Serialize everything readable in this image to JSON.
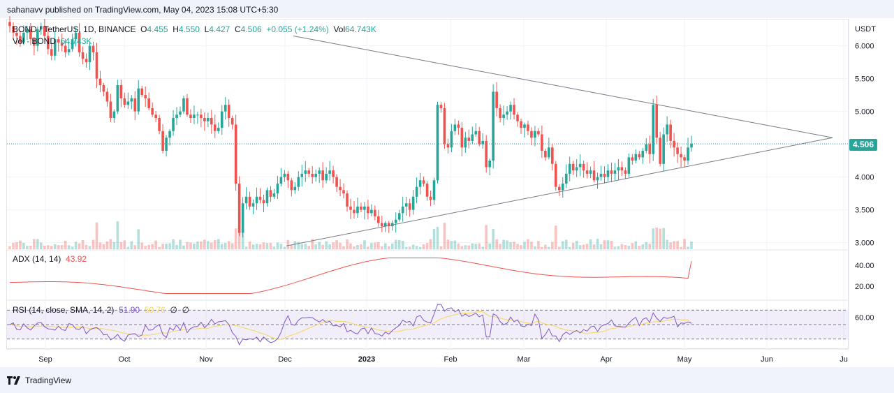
{
  "header": {
    "published": "sahanavv published on TradingView.com, May 04, 2023 15:08 UTC+5:30"
  },
  "legend": {
    "symbol": "BOND / TetherUS, 1D, BINANCE",
    "o_label": "O",
    "o_value": "4.455",
    "h_label": "H",
    "h_value": "4.550",
    "l_label": "L",
    "l_value": "4.427",
    "c_label": "C",
    "c_value": "4.506",
    "change": "+0.055 (+1.24%)",
    "vol_label": "Vol",
    "vol_value": "64.743K",
    "vol_line_label": "Vol · BOND",
    "vol_line_value": "64.743K",
    "adx_label": "ADX (14, 14)",
    "adx_value": "43.92",
    "rsi_label": "RSI (14, close, SMA, 14, 2)",
    "rsi_value": "51.90",
    "rsi_sma_value": "50.76",
    "rsi_extra1": "∅",
    "rsi_extra2": "∅"
  },
  "footer": {
    "logo_text": "TradingView"
  },
  "colors": {
    "up": "#26a69a",
    "down": "#ef5350",
    "adx": "#ef5350",
    "rsi": "#7e57c2",
    "rsi_sma": "#f5d65c",
    "trendline": "#787b86"
  },
  "chart_data": {
    "type": "candlestick",
    "symbol": "BOND / TetherUS",
    "interval": "1D",
    "currency": "USDT",
    "x_axis_labels": [
      "Sep",
      "Oct",
      "Nov",
      "Dec",
      "2023",
      "Feb",
      "Mar",
      "Apr",
      "May",
      "Jun",
      "Ju"
    ],
    "y_axis": {
      "ticks": [
        "6.000",
        "5.500",
        "5.000",
        "4.500",
        "4.000",
        "3.500",
        "3.000"
      ],
      "range": [
        2.9,
        6.4
      ]
    },
    "last_price": "4.506",
    "close_series": [
      6.3,
      6.2,
      6.15,
      6.05,
      6.2,
      6.25,
      6.1,
      6.0,
      6.25,
      6.3,
      6.15,
      5.95,
      5.85,
      6.1,
      6.05,
      6.0,
      5.9,
      5.95,
      6.1,
      6.2,
      5.9,
      5.8,
      5.75,
      6.0,
      5.9,
      5.5,
      5.4,
      5.3,
      5.15,
      4.9,
      5.0,
      5.4,
      5.2,
      5.1,
      5.15,
      5.2,
      5.0,
      5.35,
      5.25,
      5.2,
      5.05,
      4.95,
      4.9,
      4.7,
      4.4,
      4.6,
      4.7,
      4.9,
      4.95,
      5.0,
      5.2,
      4.95,
      4.9,
      4.95,
      4.95,
      4.9,
      4.85,
      4.9,
      4.8,
      4.7,
      4.75,
      5.0,
      5.1,
      4.9,
      4.8,
      3.9,
      3.15,
      3.6,
      3.7,
      3.55,
      3.6,
      3.7,
      3.65,
      3.6,
      3.8,
      3.7,
      3.75,
      3.9,
      4.0,
      4.05,
      3.95,
      3.8,
      3.85,
      4.0,
      4.05,
      4.1,
      4.05,
      4.0,
      4.05,
      4.1,
      3.95,
      4.05,
      4.1,
      4.0,
      3.85,
      3.8,
      3.75,
      3.55,
      3.5,
      3.45,
      3.55,
      3.5,
      3.55,
      3.45,
      3.5,
      3.4,
      3.3,
      3.25,
      3.3,
      3.25,
      3.3,
      3.35,
      3.45,
      3.55,
      3.6,
      3.5,
      3.7,
      3.85,
      3.95,
      3.9,
      3.7,
      3.65,
      3.95,
      5.1,
      5.05,
      4.5,
      4.45,
      4.7,
      4.8,
      4.75,
      4.45,
      4.6,
      4.55,
      4.65,
      4.7,
      4.5,
      4.55,
      4.15,
      4.25,
      5.3,
      5.05,
      4.9,
      4.95,
      5.0,
      5.1,
      4.95,
      4.85,
      4.75,
      4.8,
      4.7,
      4.6,
      4.7,
      4.65,
      4.4,
      4.3,
      4.45,
      4.2,
      3.85,
      3.8,
      3.9,
      4.05,
      4.2,
      4.1,
      4.15,
      4.2,
      4.1,
      4.05,
      4.1,
      3.95,
      4.0,
      4.05,
      4.0,
      4.1,
      4.05,
      4.1,
      4.15,
      4.1,
      4.05,
      4.3,
      4.25,
      4.35,
      4.3,
      4.4,
      4.5,
      4.35,
      5.1,
      4.6,
      4.2,
      4.65,
      4.8,
      4.55,
      4.45,
      4.35,
      4.3,
      4.25,
      4.45,
      4.506
    ],
    "trendlines": [
      {
        "name": "upper-trendline",
        "from": [
          "2022-11-23",
          6.15
        ],
        "to": [
          "2023-06-25",
          4.6
        ]
      },
      {
        "name": "lower-trendline",
        "from": [
          "2022-11-28",
          2.95
        ],
        "to": [
          "2023-06-25",
          4.6
        ]
      }
    ],
    "adx": {
      "axis_ticks": [
        "40.00",
        "20.00"
      ],
      "last": 43.92
    },
    "rsi": {
      "axis_ticks": [
        "60.00"
      ],
      "last": 51.9,
      "sma_last": 50.76,
      "bands": [
        70,
        30
      ]
    }
  }
}
